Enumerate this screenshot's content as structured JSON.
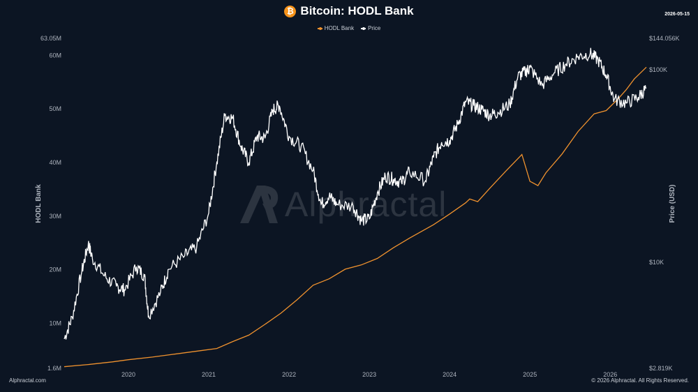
{
  "header": {
    "icon": "bitcoin-icon",
    "icon_glyph": "₿",
    "title": "Bitcoin: HODL Bank",
    "date": "2026-05-15"
  },
  "footer": {
    "left": "Alphractal.com",
    "right": "© 2026 Alphractal. All Rights Reserved."
  },
  "watermark": {
    "text": "Alphractal"
  },
  "colors": {
    "background": "#0c1523",
    "hodl_bank": "#f0922e",
    "price": "#ffffff",
    "axis_text": "#aeb4be"
  },
  "chart_data": {
    "type": "line",
    "title": "Bitcoin: HODL Bank",
    "legend": {
      "placement": "top-center",
      "entries": [
        "HODL Bank",
        "Price"
      ]
    },
    "grid": false,
    "x_axis": {
      "type": "time",
      "range": [
        2019.2,
        2026.45
      ],
      "ticks": [
        "2020",
        "2021",
        "2022",
        "2023",
        "2024",
        "2025",
        "2026"
      ]
    },
    "y_left": {
      "label": "HODL Bank",
      "scale": "linear",
      "range": [
        1600000,
        63050000
      ],
      "ticks": [
        {
          "value": 1600000,
          "label": "1.6M"
        },
        {
          "value": 10000000,
          "label": "10M"
        },
        {
          "value": 20000000,
          "label": "20M"
        },
        {
          "value": 30000000,
          "label": "30M"
        },
        {
          "value": 40000000,
          "label": "40M"
        },
        {
          "value": 50000000,
          "label": "50M"
        },
        {
          "value": 60000000,
          "label": "60M"
        },
        {
          "value": 63050000,
          "label": "63.05M"
        }
      ]
    },
    "y_right": {
      "label": "Price (USD)",
      "scale": "log",
      "range": [
        2819,
        144056
      ],
      "ticks": [
        {
          "value": 2819,
          "label": "$2.819K"
        },
        {
          "value": 10000,
          "label": "$10K"
        },
        {
          "value": 100000,
          "label": "$100K"
        },
        {
          "value": 144056,
          "label": "$144.056K"
        }
      ]
    },
    "series": [
      {
        "name": "HODL Bank",
        "axis": "left",
        "x": [
          2019.2,
          2019.5,
          2019.8,
          2020.0,
          2020.3,
          2020.6,
          2020.9,
          2021.1,
          2021.3,
          2021.5,
          2021.7,
          2021.9,
          2022.1,
          2022.3,
          2022.5,
          2022.7,
          2022.9,
          2023.1,
          2023.3,
          2023.5,
          2023.8,
          2024.0,
          2024.2,
          2024.25,
          2024.35,
          2024.5,
          2024.7,
          2024.9,
          2025.0,
          2025.1,
          2025.2,
          2025.4,
          2025.6,
          2025.8,
          2025.95,
          2026.1,
          2026.2,
          2026.3,
          2026.45
        ],
        "values": [
          1.9,
          2.3,
          2.8,
          3.2,
          3.7,
          4.3,
          4.9,
          5.3,
          6.6,
          7.8,
          9.8,
          11.9,
          14.4,
          17.1,
          18.3,
          20.1,
          20.9,
          22.1,
          24.1,
          25.9,
          28.4,
          30.4,
          32.5,
          33.2,
          32.7,
          35.2,
          38.4,
          41.5,
          36.5,
          35.7,
          38.1,
          41.6,
          45.8,
          49.1,
          49.7,
          51.9,
          53.6,
          55.6,
          57.8
        ]
      },
      {
        "name": "Price",
        "axis": "right",
        "x": [
          2019.2,
          2019.3,
          2019.42,
          2019.5,
          2019.55,
          2019.7,
          2019.85,
          2019.95,
          2020.1,
          2020.2,
          2020.25,
          2020.4,
          2020.5,
          2020.7,
          2020.85,
          2021.0,
          2021.1,
          2021.2,
          2021.3,
          2021.4,
          2021.5,
          2021.6,
          2021.7,
          2021.8,
          2021.88,
          2022.0,
          2022.15,
          2022.3,
          2022.4,
          2022.5,
          2022.6,
          2022.8,
          2022.9,
          2023.0,
          2023.1,
          2023.2,
          2023.3,
          2023.4,
          2023.5,
          2023.7,
          2023.8,
          2023.9,
          2024.0,
          2024.1,
          2024.2,
          2024.3,
          2024.4,
          2024.5,
          2024.6,
          2024.75,
          2024.85,
          2024.95,
          2025.0,
          2025.15,
          2025.3,
          2025.45,
          2025.6,
          2025.75,
          2025.85,
          2025.95,
          2026.05,
          2026.2,
          2026.35,
          2026.45
        ],
        "values": [
          4000,
          5200,
          9000,
          12500,
          10500,
          8500,
          7500,
          7200,
          9500,
          8500,
          5300,
          7000,
          9200,
          10800,
          12000,
          18000,
          33000,
          58000,
          56000,
          40000,
          33000,
          45000,
          44000,
          62000,
          65000,
          45000,
          40000,
          30000,
          20000,
          22000,
          20000,
          19500,
          16500,
          16800,
          23000,
          28000,
          27000,
          26000,
          29500,
          26500,
          35000,
          42000,
          43000,
          52000,
          68000,
          65000,
          62000,
          58000,
          60000,
          66000,
          92000,
          98000,
          102000,
          83000,
          96000,
          107000,
          117000,
          121000,
          112000,
          94000,
          70000,
          67000,
          72000,
          80000
        ]
      }
    ]
  }
}
